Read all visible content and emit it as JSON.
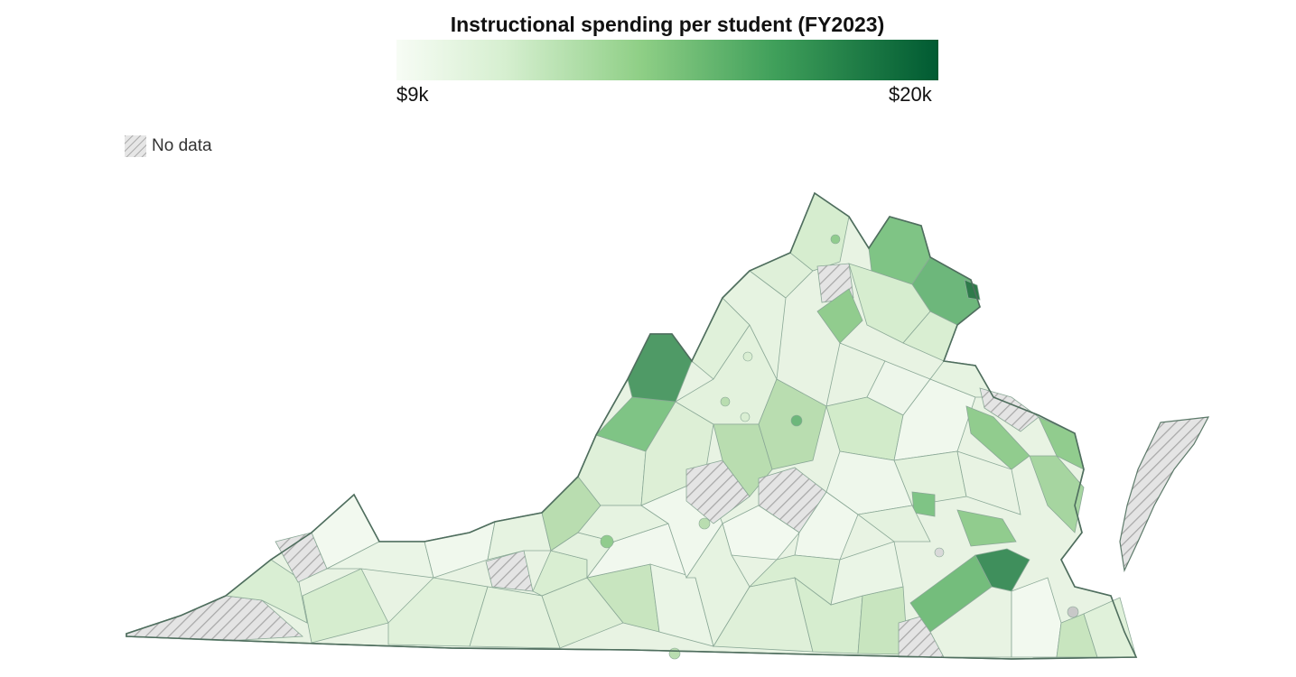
{
  "legend": {
    "title": "Instructional spending per student (FY2023)",
    "min_label": "$9k",
    "max_label": "$20k",
    "no_data_label": "No data",
    "scale_colors": [
      "#f7fcf5",
      "#e5f5e0",
      "#c7e9c0",
      "#a1d99b",
      "#74c476",
      "#41ab5d",
      "#238b45",
      "#005a32"
    ],
    "no_data_color": "#d9d9d9"
  },
  "map": {
    "border_color": "#5d7a6a",
    "fill_light": "#e8f3e3",
    "fill_medium": "#b9ddb0",
    "fill_strong": "#7fc485",
    "fill_dark": "#4f9a66",
    "fill_darkest": "#2e7a4a"
  }
}
